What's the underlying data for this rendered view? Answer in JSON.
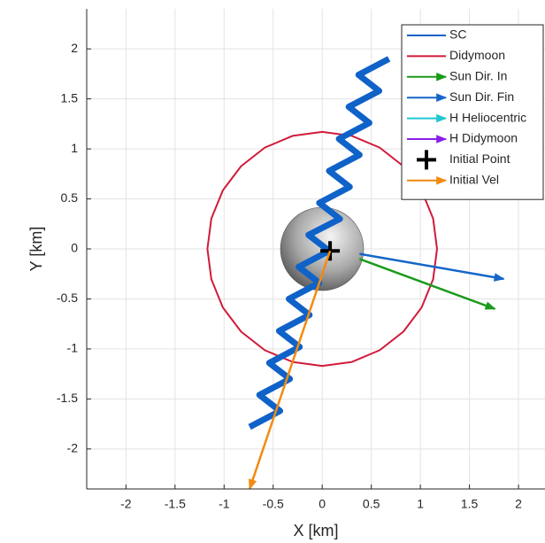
{
  "chart_data": {
    "type": "line",
    "xlabel": "X [km]",
    "ylabel": "Y [km]",
    "xlim": [
      -2.4,
      2.27
    ],
    "ylim": [
      -2.4,
      2.4
    ],
    "xticks": [
      -2,
      -1.5,
      -1,
      -0.5,
      0,
      0.5,
      1,
      1.5,
      2
    ],
    "yticks": [
      -2,
      -1.5,
      -1,
      -0.5,
      0,
      0.5,
      1,
      1.5,
      2
    ],
    "grid": true,
    "legend": "upper right",
    "series": [
      {
        "name": "SC",
        "color": "#0f62c8",
        "kind": "line",
        "x": [
          -0.74,
          -0.43,
          -0.64,
          -0.33,
          -0.54,
          -0.23,
          -0.44,
          -0.13,
          -0.34,
          -0.03,
          -0.24,
          0.07,
          -0.14,
          0.18,
          -0.03,
          0.28,
          0.07,
          0.38,
          0.17,
          0.48,
          0.27,
          0.58,
          0.37,
          0.68
        ],
        "y": [
          -1.78,
          -1.62,
          -1.46,
          -1.3,
          -1.14,
          -0.98,
          -0.82,
          -0.66,
          -0.5,
          -0.34,
          -0.18,
          -0.02,
          0.14,
          0.3,
          0.46,
          0.62,
          0.78,
          0.94,
          1.1,
          1.26,
          1.42,
          1.58,
          1.74,
          1.9
        ]
      },
      {
        "name": "Didymoon",
        "color": "#d11a3a",
        "kind": "line",
        "x": [
          1.17,
          1.13,
          1.013,
          0.827,
          0.585,
          0.303,
          0,
          -0.303,
          -0.585,
          -0.827,
          -1.013,
          -1.13,
          -1.17,
          -1.13,
          -1.013,
          -0.827,
          -0.585,
          -0.303,
          0,
          0.303,
          0.585,
          0.827,
          1.013,
          1.13,
          1.17
        ],
        "y": [
          0,
          0.303,
          0.585,
          0.827,
          1.013,
          1.13,
          1.17,
          1.13,
          1.013,
          0.827,
          0.585,
          0.303,
          0,
          -0.303,
          -0.585,
          -0.827,
          -1.013,
          -1.13,
          -1.17,
          -1.13,
          -1.013,
          -0.827,
          -0.585,
          -0.303,
          0
        ]
      },
      {
        "name": "Sun Dir. In",
        "color": "#1a9a1a",
        "kind": "arrow",
        "x": [
          0.38,
          1.76
        ],
        "y": [
          -0.1,
          -0.6
        ]
      },
      {
        "name": "Sun Dir. Fin",
        "color": "#1566c8",
        "kind": "arrow",
        "x": [
          0.38,
          1.85
        ],
        "y": [
          -0.05,
          -0.3
        ]
      },
      {
        "name": "H Heliocentric",
        "color": "#20c8d0",
        "kind": "arrow"
      },
      {
        "name": "H Didymoon",
        "color": "#8a1ee8",
        "kind": "arrow"
      },
      {
        "name": "Initial Point",
        "color": "#000000",
        "kind": "marker",
        "x": [
          0.08
        ],
        "y": [
          -0.02
        ]
      },
      {
        "name": "Initial Vel",
        "color": "#f28a10",
        "kind": "arrow",
        "x": [
          0.08,
          -0.74
        ],
        "y": [
          -0.02,
          -2.4
        ]
      }
    ]
  }
}
